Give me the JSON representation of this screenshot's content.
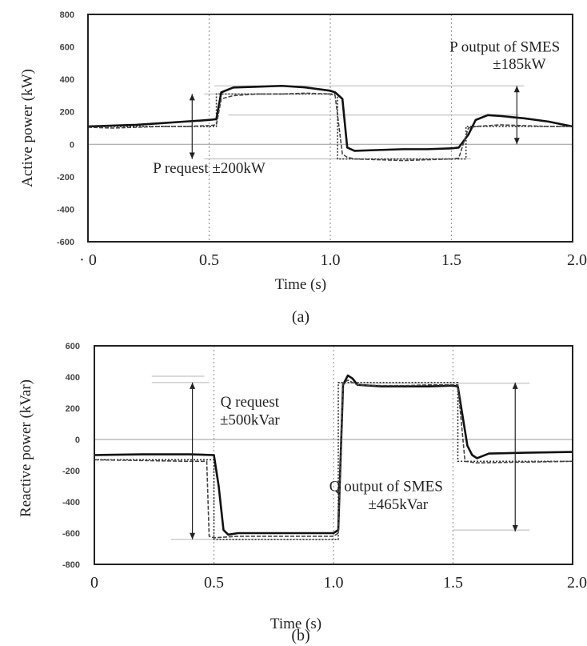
{
  "chart_data": [
    {
      "type": "line",
      "panel_label": "(a)",
      "xlabel": "Time (s)",
      "ylabel": "Active power (kW)",
      "xlim": [
        0,
        2.0
      ],
      "ylim": [
        -600,
        800
      ],
      "xticks": [
        0,
        0.5,
        1.0,
        1.5,
        2.0
      ],
      "xtick_labels": [
        "· 0",
        "0.5",
        "1.0",
        "1.5",
        "2.0"
      ],
      "yticks": [
        800,
        600,
        400,
        200,
        0,
        -200,
        -400,
        -600
      ],
      "ytick_labels": [
        "800",
        "600",
        "400",
        "200",
        "0",
        "-200",
        "-400",
        "-600"
      ],
      "grid_x": [
        0.5,
        1.0,
        1.5
      ],
      "series": [
        {
          "style": "solid",
          "points": [
            [
              0,
              110
            ],
            [
              0.1,
              115
            ],
            [
              0.2,
              120
            ],
            [
              0.3,
              130
            ],
            [
              0.4,
              140
            ],
            [
              0.5,
              150
            ],
            [
              0.53,
              155
            ],
            [
              0.55,
              320
            ],
            [
              0.6,
              350
            ],
            [
              0.7,
              355
            ],
            [
              0.8,
              360
            ],
            [
              0.9,
              350
            ],
            [
              1.0,
              330
            ],
            [
              1.02,
              320
            ],
            [
              1.05,
              280
            ],
            [
              1.07,
              -20
            ],
            [
              1.1,
              -40
            ],
            [
              1.2,
              -35
            ],
            [
              1.3,
              -30
            ],
            [
              1.4,
              -30
            ],
            [
              1.5,
              -25
            ],
            [
              1.53,
              -20
            ],
            [
              1.57,
              60
            ],
            [
              1.6,
              150
            ],
            [
              1.65,
              180
            ],
            [
              1.7,
              175
            ],
            [
              1.8,
              160
            ],
            [
              1.9,
              140
            ],
            [
              2.0,
              110
            ]
          ]
        },
        {
          "style": "dashed",
          "points": [
            [
              0,
              105
            ],
            [
              0.1,
              100
            ],
            [
              0.2,
              105
            ],
            [
              0.3,
              110
            ],
            [
              0.4,
              110
            ],
            [
              0.5,
              115
            ],
            [
              0.53,
              120
            ],
            [
              0.55,
              280
            ],
            [
              0.6,
              300
            ],
            [
              0.7,
              310
            ],
            [
              0.8,
              310
            ],
            [
              0.9,
              315
            ],
            [
              1.0,
              310
            ],
            [
              1.02,
              300
            ],
            [
              1.05,
              -60
            ],
            [
              1.07,
              -80
            ],
            [
              1.1,
              -90
            ],
            [
              1.2,
              -95
            ],
            [
              1.3,
              -100
            ],
            [
              1.4,
              -95
            ],
            [
              1.5,
              -90
            ],
            [
              1.53,
              -85
            ],
            [
              1.57,
              100
            ],
            [
              1.6,
              110
            ],
            [
              1.7,
              120
            ],
            [
              1.8,
              115
            ],
            [
              1.9,
              110
            ],
            [
              2.0,
              110
            ]
          ]
        }
      ],
      "reference_lines": [
        {
          "x0": 0.48,
          "x1": 0.9,
          "y": 310
        },
        {
          "x0": 0.52,
          "x1": 1.8,
          "y": 360
        },
        {
          "x0": 0.48,
          "x1": 1.58,
          "y": -90
        },
        {
          "x0": 0.58,
          "x1": 1.78,
          "y": 180
        }
      ],
      "request_step": [
        [
          0.0,
          110
        ],
        [
          0.53,
          110
        ],
        [
          0.53,
          310
        ],
        [
          1.03,
          310
        ],
        [
          1.03,
          -90
        ],
        [
          1.56,
          -90
        ],
        [
          1.56,
          110
        ],
        [
          2.0,
          110
        ]
      ],
      "range_markers": [
        {
          "x": 0.43,
          "y0": 310,
          "y1": -90
        },
        {
          "x": 1.77,
          "y0": 360,
          "y1": 0
        }
      ],
      "annotations": [
        {
          "text": "P output of SMES",
          "x": 1.72,
          "y": 570
        },
        {
          "text": "±185kW",
          "x": 1.78,
          "y": 465
        },
        {
          "text": "P request  ±200kW",
          "x": 0.5,
          "y": -175
        }
      ]
    },
    {
      "type": "line",
      "panel_label": "(b)",
      "xlabel": "Time (s)",
      "ylabel": "Reactive power (kVar)",
      "xlim": [
        0,
        2.0
      ],
      "ylim": [
        -800,
        600
      ],
      "xticks": [
        0,
        0.5,
        1.0,
        1.5,
        2.0
      ],
      "xtick_labels": [
        "0",
        "0.5",
        "1.0",
        "1.5",
        "2.0"
      ],
      "yticks": [
        600,
        400,
        200,
        0,
        -200,
        -400,
        -600,
        -800
      ],
      "ytick_labels": [
        "600",
        "400",
        "200",
        "0",
        "-200",
        "-400",
        "-600",
        "-800"
      ],
      "grid_x": [
        0.5,
        1.0,
        1.5
      ],
      "series": [
        {
          "style": "solid",
          "points": [
            [
              0,
              -100
            ],
            [
              0.2,
              -95
            ],
            [
              0.4,
              -95
            ],
            [
              0.5,
              -100
            ],
            [
              0.52,
              -300
            ],
            [
              0.54,
              -580
            ],
            [
              0.56,
              -610
            ],
            [
              0.6,
              -600
            ],
            [
              0.8,
              -600
            ],
            [
              1.0,
              -600
            ],
            [
              1.02,
              -580
            ],
            [
              1.04,
              350
            ],
            [
              1.06,
              410
            ],
            [
              1.08,
              390
            ],
            [
              1.1,
              350
            ],
            [
              1.2,
              340
            ],
            [
              1.3,
              340
            ],
            [
              1.4,
              340
            ],
            [
              1.5,
              345
            ],
            [
              1.52,
              340
            ],
            [
              1.54,
              150
            ],
            [
              1.56,
              -40
            ],
            [
              1.58,
              -100
            ],
            [
              1.6,
              -120
            ],
            [
              1.65,
              -90
            ],
            [
              1.8,
              -85
            ],
            [
              2.0,
              -80
            ]
          ]
        },
        {
          "style": "dashed",
          "points": [
            [
              0,
              -130
            ],
            [
              0.2,
              -135
            ],
            [
              0.4,
              -140
            ],
            [
              0.47,
              -140
            ],
            [
              0.48,
              -620
            ],
            [
              0.5,
              -630
            ],
            [
              0.6,
              -620
            ],
            [
              0.8,
              -620
            ],
            [
              1.0,
              -620
            ],
            [
              1.02,
              -600
            ],
            [
              1.04,
              360
            ],
            [
              1.06,
              380
            ],
            [
              1.1,
              350
            ],
            [
              1.2,
              345
            ],
            [
              1.3,
              345
            ],
            [
              1.4,
              350
            ],
            [
              1.5,
              350
            ],
            [
              1.52,
              350
            ],
            [
              1.55,
              -140
            ],
            [
              1.6,
              -150
            ],
            [
              1.8,
              -145
            ],
            [
              2.0,
              -140
            ]
          ]
        }
      ],
      "reference_lines": [
        {
          "x0": 0.24,
          "x1": 0.46,
          "y": 405
        },
        {
          "x0": 0.24,
          "x1": 0.48,
          "y": 365
        },
        {
          "x0": 0.32,
          "x1": 1.02,
          "y": -640
        },
        {
          "x0": 1.02,
          "x1": 1.82,
          "y": 360
        },
        {
          "x0": 1.5,
          "x1": 1.82,
          "y": -580
        }
      ],
      "request_step": [
        [
          0.0,
          -130
        ],
        [
          0.5,
          -130
        ],
        [
          0.5,
          -640
        ],
        [
          1.02,
          -640
        ],
        [
          1.02,
          365
        ],
        [
          1.52,
          365
        ],
        [
          1.52,
          -140
        ],
        [
          2.0,
          -140
        ]
      ],
      "range_markers": [
        {
          "x": 0.41,
          "y0": 365,
          "y1": -640
        },
        {
          "x": 1.76,
          "y0": 365,
          "y1": -590
        }
      ],
      "annotations": [
        {
          "text": "Q request",
          "x": 0.65,
          "y": 210
        },
        {
          "text": "±500kVar",
          "x": 0.65,
          "y": 95
        },
        {
          "text": "Q output of SMES",
          "x": 1.22,
          "y": -330
        },
        {
          "text": "±465kVar",
          "x": 1.27,
          "y": -445
        }
      ]
    }
  ]
}
